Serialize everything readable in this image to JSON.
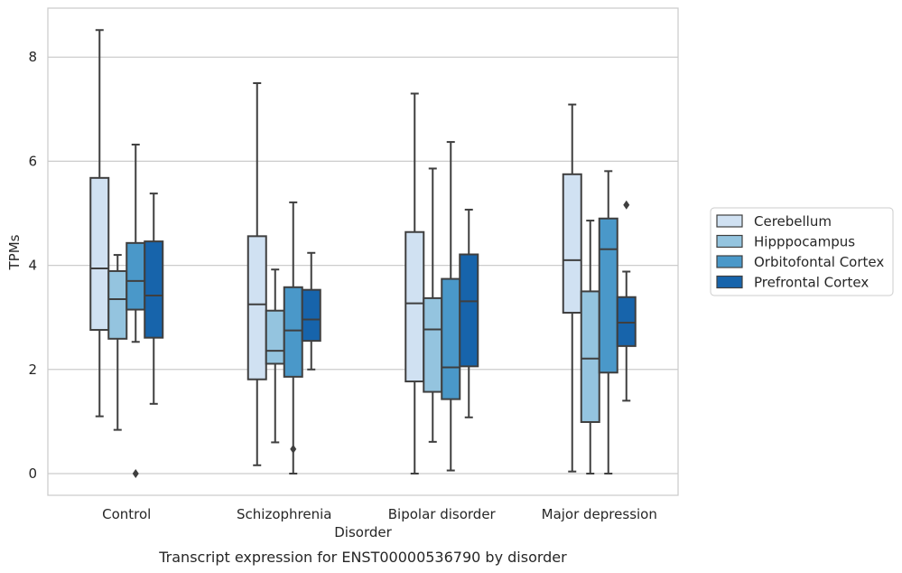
{
  "chart_data": {
    "type": "box",
    "title": "",
    "caption": "Transcript expression for ENST00000536790 by disorder",
    "xlabel": "Disorder",
    "ylabel": "TPMs",
    "ylim": [
      -0.4,
      9.1
    ],
    "yticks": [
      0,
      2,
      4,
      6,
      8
    ],
    "grid": "horizontal",
    "legend_position": "right",
    "categories": [
      "Control",
      "Schizophrenia",
      "Bipolar disorder",
      "Major depression"
    ],
    "series": [
      {
        "name": "Cerebellum",
        "color": "#d0e1f2",
        "boxes": [
          {
            "whisker_low": 1.1,
            "q1": 2.76,
            "median": 3.94,
            "q3": 5.68,
            "whisker_high": 8.52,
            "outliers": []
          },
          {
            "whisker_low": 0.16,
            "q1": 1.81,
            "median": 3.25,
            "q3": 4.56,
            "whisker_high": 7.5,
            "outliers": []
          },
          {
            "whisker_low": 0.0,
            "q1": 1.77,
            "median": 3.27,
            "q3": 4.64,
            "whisker_high": 7.3,
            "outliers": []
          },
          {
            "whisker_low": 0.04,
            "q1": 3.09,
            "median": 4.1,
            "q3": 5.75,
            "whisker_high": 7.09,
            "outliers": []
          }
        ]
      },
      {
        "name": "Hipppocampus",
        "color": "#94c4df",
        "boxes": [
          {
            "whisker_low": 0.84,
            "q1": 2.59,
            "median": 3.35,
            "q3": 3.89,
            "whisker_high": 4.2,
            "outliers": []
          },
          {
            "whisker_low": 0.6,
            "q1": 2.11,
            "median": 2.36,
            "q3": 3.13,
            "whisker_high": 3.92,
            "outliers": []
          },
          {
            "whisker_low": 0.61,
            "q1": 1.57,
            "median": 2.77,
            "q3": 3.37,
            "whisker_high": 5.86,
            "outliers": []
          },
          {
            "whisker_low": 0.0,
            "q1": 0.99,
            "median": 2.21,
            "q3": 3.5,
            "whisker_high": 4.86,
            "outliers": []
          }
        ]
      },
      {
        "name": "Orbitofontal Cortex",
        "color": "#4a98c9",
        "boxes": [
          {
            "whisker_low": 2.53,
            "q1": 3.15,
            "median": 3.7,
            "q3": 4.43,
            "whisker_high": 6.32,
            "outliers": [
              0.0
            ]
          },
          {
            "whisker_low": 0.0,
            "q1": 1.86,
            "median": 2.75,
            "q3": 3.58,
            "whisker_high": 5.21,
            "outliers": [
              0.47
            ]
          },
          {
            "whisker_low": 0.06,
            "q1": 1.43,
            "median": 2.04,
            "q3": 3.74,
            "whisker_high": 6.37,
            "outliers": []
          },
          {
            "whisker_low": 0.0,
            "q1": 1.94,
            "median": 4.31,
            "q3": 4.9,
            "whisker_high": 5.81,
            "outliers": []
          }
        ]
      },
      {
        "name": "Prefrontal Cortex",
        "color": "#1764ab",
        "boxes": [
          {
            "whisker_low": 1.34,
            "q1": 2.61,
            "median": 3.42,
            "q3": 4.46,
            "whisker_high": 5.38,
            "outliers": []
          },
          {
            "whisker_low": 2.0,
            "q1": 2.55,
            "median": 2.96,
            "q3": 3.53,
            "whisker_high": 4.24,
            "outliers": []
          },
          {
            "whisker_low": 1.08,
            "q1": 2.06,
            "median": 3.31,
            "q3": 4.21,
            "whisker_high": 5.07,
            "outliers": []
          },
          {
            "whisker_low": 1.4,
            "q1": 2.45,
            "median": 2.9,
            "q3": 3.39,
            "whisker_high": 3.88,
            "outliers": [
              5.16
            ]
          }
        ]
      }
    ]
  }
}
